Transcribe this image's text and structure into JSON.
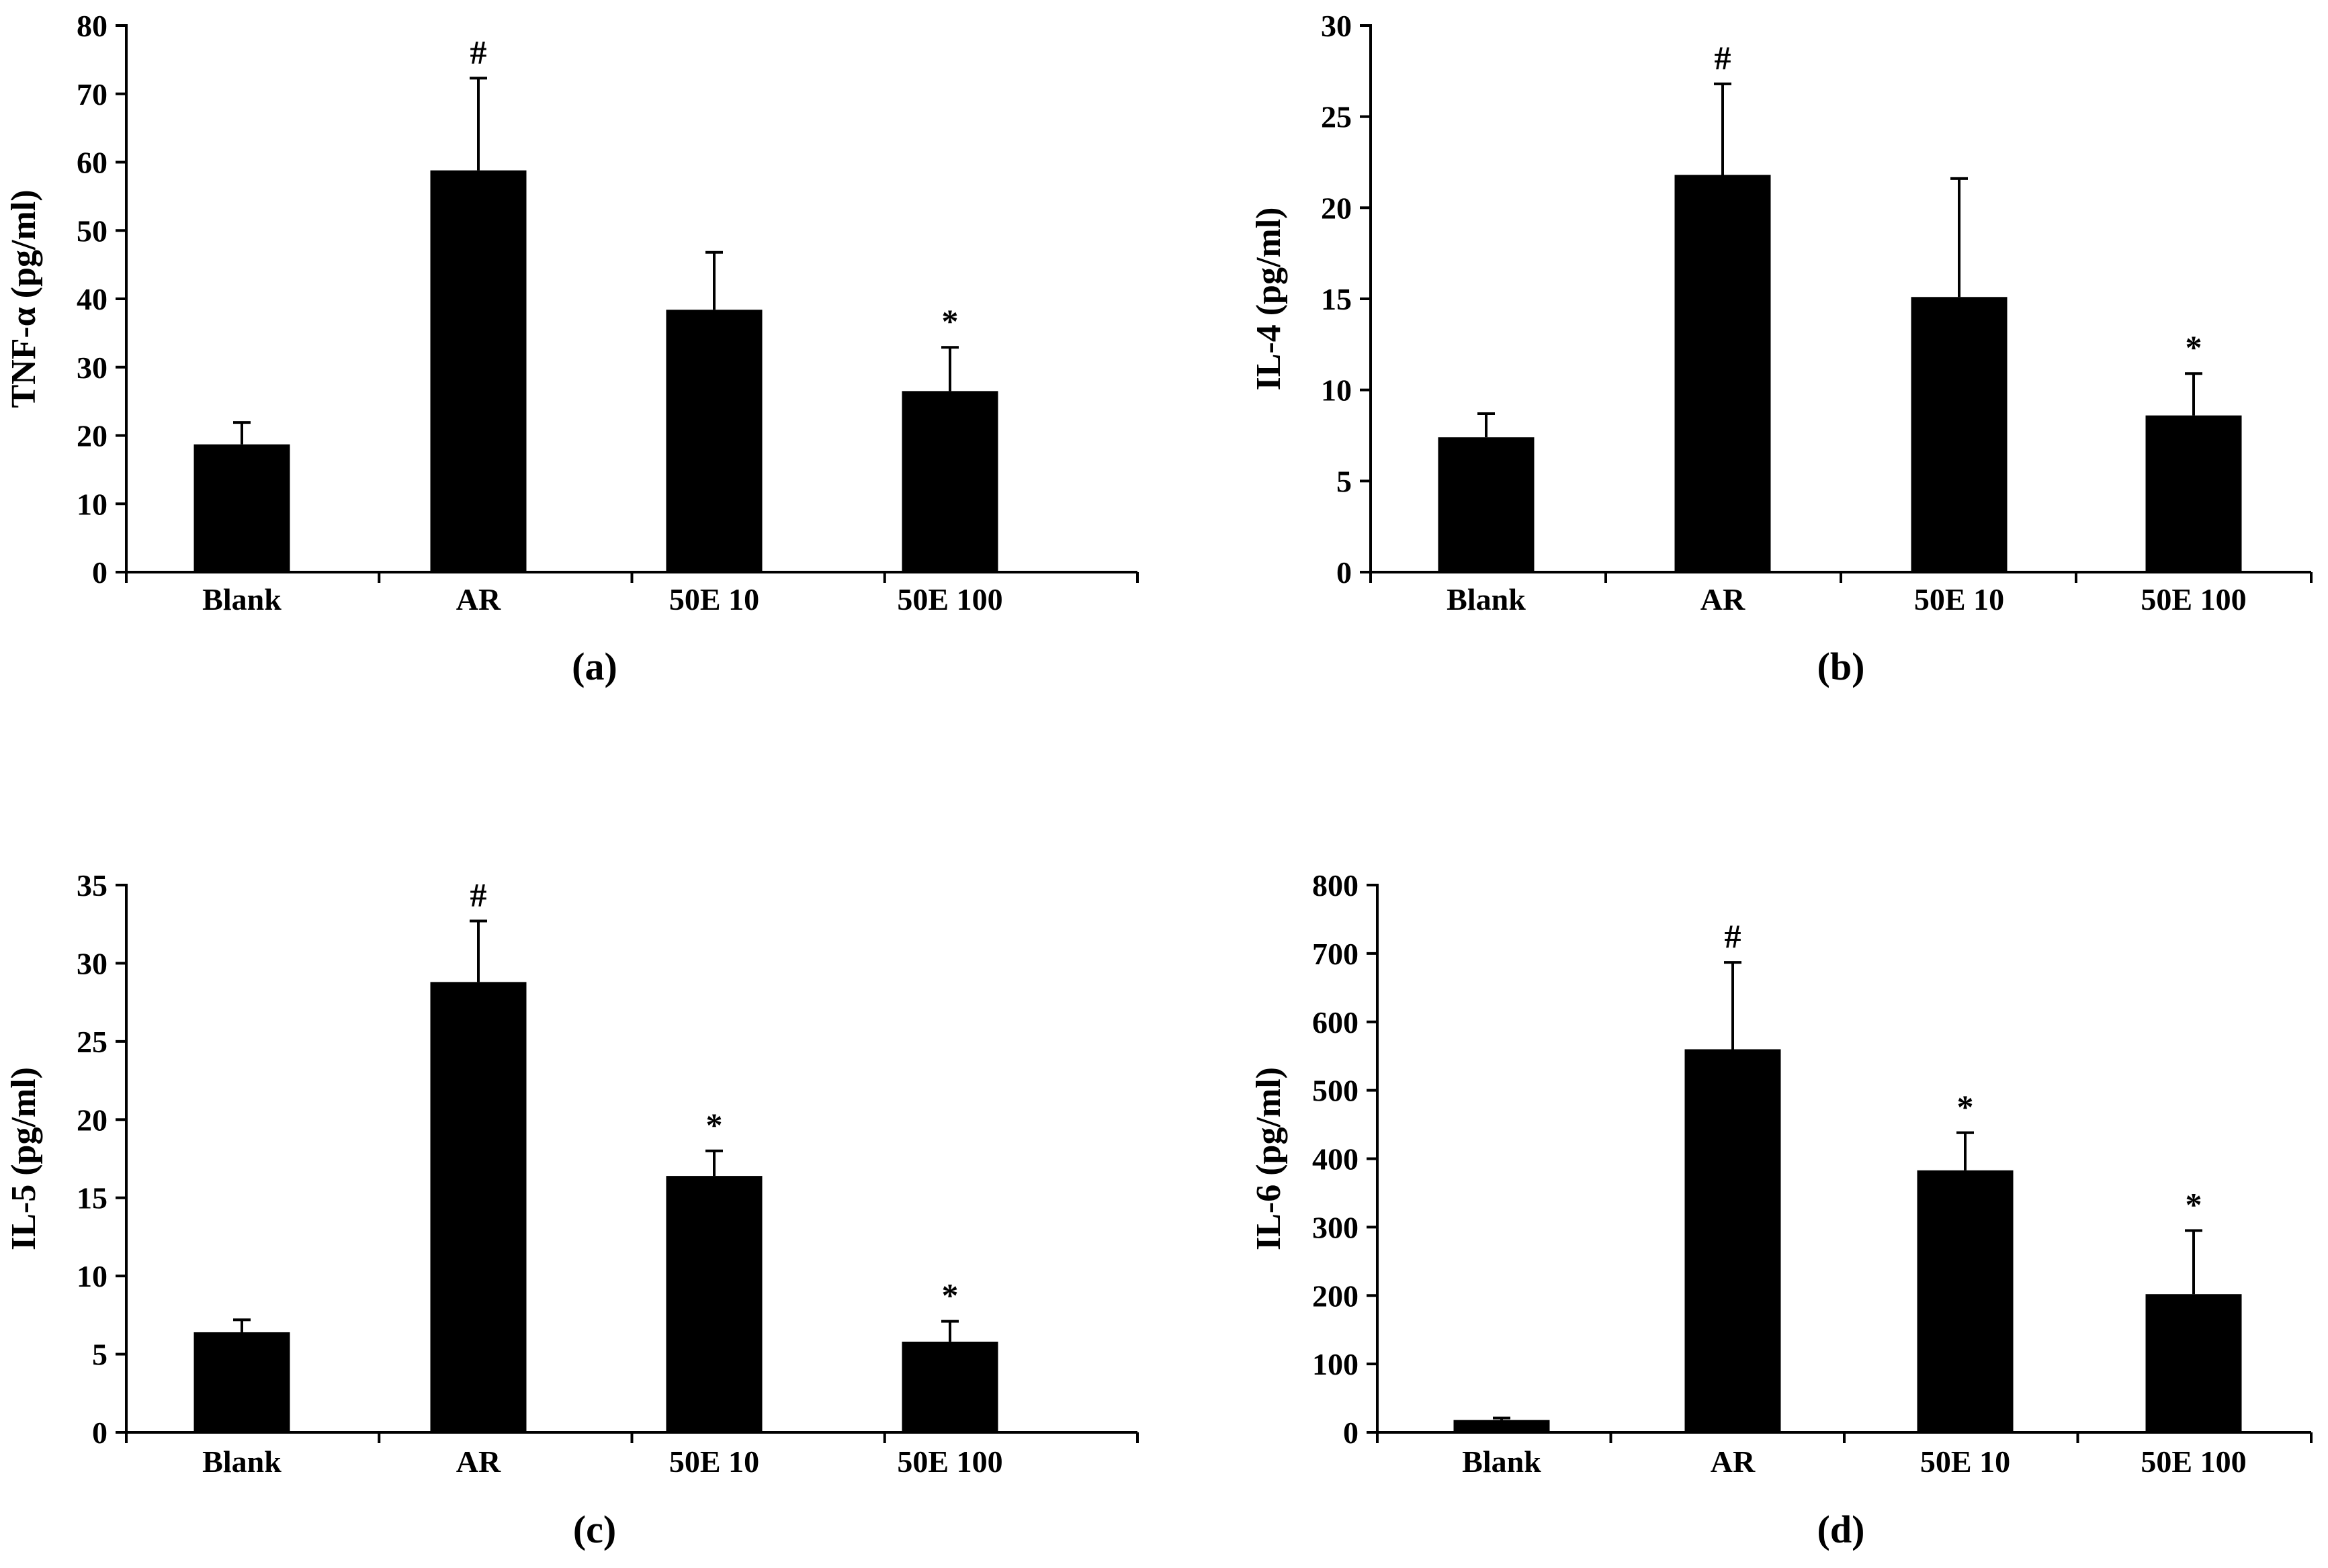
{
  "chart_data": [
    {
      "type": "bar",
      "panel_label": "(a)",
      "ylabel": "TNF-α (pg/ml)",
      "categories": [
        "Blank",
        "AR",
        "50E 10",
        "50E 100"
      ],
      "values": [
        18.7,
        58.8,
        38.4,
        26.5
      ],
      "errors": [
        3.2,
        13.5,
        8.4,
        6.4
      ],
      "significance": [
        "",
        "#",
        "",
        "*"
      ],
      "ylim": [
        0,
        80
      ],
      "yticks": [
        0,
        10,
        20,
        30,
        40,
        50,
        60,
        70,
        80
      ],
      "ytick_labels": [
        "0",
        "10",
        "20",
        "30",
        "40",
        "50",
        "60",
        "70",
        "80"
      ]
    },
    {
      "type": "bar",
      "panel_label": "(b)",
      "ylabel": "IL-4 (pg/ml)",
      "categories": [
        "Blank",
        "AR",
        "50E 10",
        "50E 100"
      ],
      "values": [
        7.4,
        21.8,
        15.1,
        8.6
      ],
      "errors": [
        1.3,
        5.0,
        6.5,
        2.3
      ],
      "significance": [
        "",
        "#",
        "",
        "*"
      ],
      "ylim": [
        0,
        30
      ],
      "yticks": [
        0,
        5,
        10,
        15,
        20,
        25,
        30
      ],
      "ytick_labels": [
        "0",
        "5",
        "10",
        "15",
        "20",
        "25",
        "30"
      ]
    },
    {
      "type": "bar",
      "panel_label": "(c)",
      "ylabel": "IL-5 (pg/ml)",
      "categories": [
        "Blank",
        "AR",
        "50E 10",
        "50E 100"
      ],
      "values": [
        6.4,
        28.8,
        16.4,
        5.8
      ],
      "errors": [
        0.8,
        3.9,
        1.6,
        1.3
      ],
      "significance": [
        "",
        "#",
        "*",
        "*"
      ],
      "ylim": [
        0,
        35
      ],
      "yticks": [
        0,
        5,
        10,
        15,
        20,
        25,
        30,
        35
      ],
      "ytick_labels": [
        "0",
        "5",
        "10",
        "15",
        "20",
        "25",
        "30",
        "35"
      ]
    },
    {
      "type": "bar",
      "panel_label": "(d)",
      "ylabel": "IL-6 (pg/ml)",
      "categories": [
        "Blank",
        "AR",
        "50E 10",
        "50E 100"
      ],
      "values": [
        18,
        560,
        383,
        202
      ],
      "errors": [
        3,
        127,
        55,
        93
      ],
      "significance": [
        "",
        "#",
        "*",
        "*"
      ],
      "ylim": [
        0,
        800
      ],
      "yticks": [
        0,
        100,
        200,
        300,
        400,
        500,
        600,
        700,
        800
      ],
      "ytick_labels": [
        "0",
        "100",
        "200",
        "300",
        "400",
        "500",
        "600",
        "700",
        "800"
      ]
    }
  ]
}
